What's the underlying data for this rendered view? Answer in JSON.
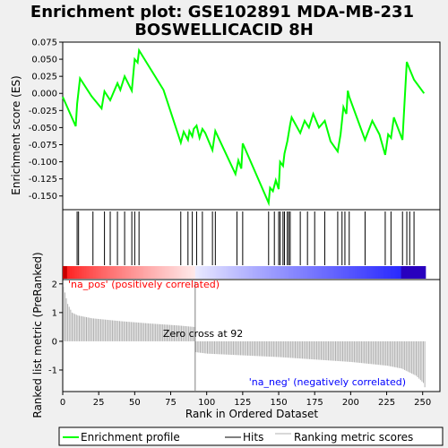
{
  "title_line1": "Enrichment plot: GSE102891 MDA-MB-231",
  "title_line2": "BOSWELLICACID 8H",
  "colors": {
    "es_line": "#00ff00",
    "hits": "#000000",
    "metric_bars": "#b0b0b0",
    "zero_cross": "#808080",
    "na_pos_label": "#ff0000",
    "na_neg_label": "#0000ff"
  },
  "chart_data": [
    {
      "type": "line",
      "name": "enrichment-profile",
      "ylabel": "Enrichment score (ES)",
      "xlim": [
        0,
        262
      ],
      "ylim": [
        -0.17,
        0.075
      ],
      "y_ticks": [
        "0.075",
        "0.050",
        "0.025",
        "0.000",
        "-0.025",
        "-0.050",
        "-0.075",
        "-0.100",
        "-0.125",
        "-0.150"
      ],
      "y_tick_values": [
        0.075,
        0.05,
        0.025,
        0.0,
        -0.025,
        -0.05,
        -0.075,
        -0.1,
        -0.125,
        -0.15
      ],
      "grid": false,
      "x": [
        0,
        9,
        10,
        12,
        20,
        27,
        29,
        33,
        38,
        40,
        43,
        48,
        50,
        52,
        53,
        70,
        82,
        84,
        87,
        88,
        90,
        91,
        93,
        95,
        97,
        99,
        104,
        106,
        108,
        120,
        122,
        124,
        125,
        143,
        144,
        146,
        148,
        150,
        151,
        153,
        154,
        156,
        158,
        159,
        165,
        168,
        171,
        174,
        178,
        182,
        186,
        191,
        193,
        194,
        195,
        197,
        198,
        199,
        210,
        215,
        220,
        224,
        226,
        228,
        230,
        236,
        239,
        241,
        244,
        251
      ],
      "y": [
        -0.005,
        -0.048,
        -0.015,
        0.022,
        -0.004,
        -0.022,
        0.003,
        -0.01,
        0.015,
        0.005,
        0.025,
        0.004,
        0.05,
        0.045,
        0.063,
        0.005,
        -0.072,
        -0.056,
        -0.068,
        -0.055,
        -0.063,
        -0.052,
        -0.047,
        -0.065,
        -0.052,
        -0.058,
        -0.083,
        -0.055,
        -0.064,
        -0.118,
        -0.098,
        -0.11,
        -0.073,
        -0.16,
        -0.138,
        -0.143,
        -0.127,
        -0.14,
        -0.1,
        -0.106,
        -0.088,
        -0.07,
        -0.045,
        -0.035,
        -0.058,
        -0.04,
        -0.05,
        -0.03,
        -0.05,
        -0.04,
        -0.07,
        -0.085,
        -0.06,
        -0.04,
        -0.02,
        -0.03,
        0.004,
        -0.005,
        -0.068,
        -0.04,
        -0.06,
        -0.09,
        -0.06,
        -0.065,
        -0.035,
        -0.068,
        0.046,
        0.035,
        0.02,
        0.0
      ]
    },
    {
      "type": "hits",
      "name": "hits",
      "x": [
        10,
        11,
        21,
        29,
        33,
        38,
        43,
        48,
        50,
        53,
        82,
        87,
        90,
        93,
        97,
        104,
        106,
        121,
        125,
        143,
        147,
        150,
        151,
        153,
        154,
        156,
        157,
        158,
        165,
        170,
        175,
        182,
        191,
        194,
        196,
        199,
        210,
        224,
        228,
        236,
        239,
        241,
        244
      ]
    },
    {
      "type": "bar",
      "name": "ranking-metric",
      "ylabel": "Ranked list metric (PreRanked)",
      "xlabel": "Rank in Ordered Dataset",
      "xlim": [
        0,
        262
      ],
      "ylim": [
        -1.75,
        2.15
      ],
      "x_ticks": [
        "0",
        "25",
        "50",
        "75",
        "100",
        "125",
        "150",
        "175",
        "200",
        "225",
        "250"
      ],
      "x_tick_values": [
        0,
        25,
        50,
        75,
        100,
        125,
        150,
        175,
        200,
        225,
        250
      ],
      "y_ticks": [
        "2",
        "1",
        "0",
        "-1"
      ],
      "y_tick_values": [
        2,
        1,
        0,
        -1
      ],
      "n": 252,
      "curve_points": [
        [
          0,
          1.9
        ],
        [
          1,
          1.7
        ],
        [
          3,
          1.3
        ],
        [
          6,
          1.0
        ],
        [
          10,
          0.9
        ],
        [
          20,
          0.8
        ],
        [
          40,
          0.7
        ],
        [
          60,
          0.62
        ],
        [
          80,
          0.55
        ],
        [
          91,
          0.5
        ],
        [
          92,
          -0.38
        ],
        [
          100,
          -0.43
        ],
        [
          150,
          -0.55
        ],
        [
          200,
          -0.72
        ],
        [
          225,
          -0.85
        ],
        [
          235,
          -0.95
        ],
        [
          245,
          -1.2
        ],
        [
          250,
          -1.45
        ],
        [
          251,
          -1.6
        ]
      ],
      "zero_cross_at": 92,
      "zero_cross_label": "Zero cross at 92",
      "na_pos_label": "'na_pos' (positively correlated)",
      "na_neg_label": "'na_neg' (negatively correlated)"
    }
  ],
  "legend": [
    {
      "label": "Enrichment profile",
      "color": "#00ff00"
    },
    {
      "label": "Hits",
      "color": "#000000"
    },
    {
      "label": "Ranking metric scores",
      "color": "#b0b0b0"
    }
  ]
}
